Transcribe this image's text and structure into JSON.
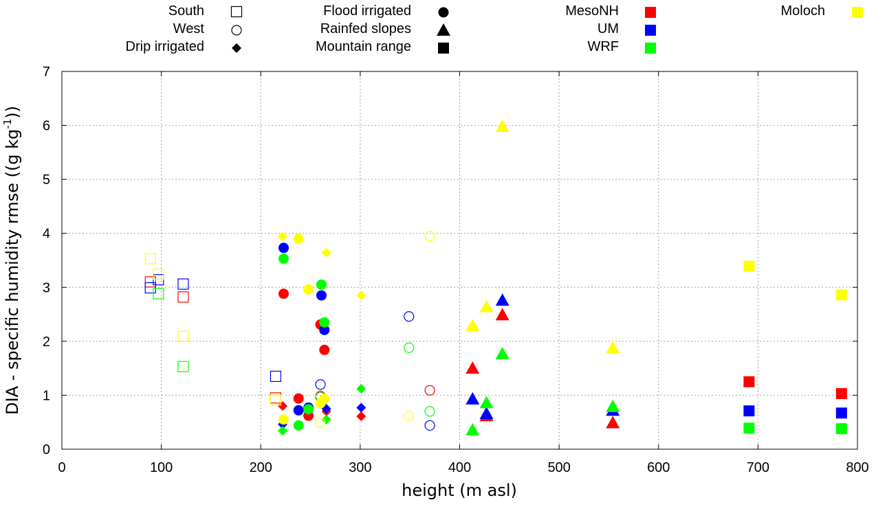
{
  "chart_data": {
    "type": "scatter",
    "title": "",
    "xlabel": "height (m asl)",
    "ylabel_main": "DIA - specific humidity rmse ((g kg",
    "ylabel_sup": "-1",
    "ylabel_tail": "))",
    "xlim": [
      0,
      800
    ],
    "ylim": [
      0,
      7
    ],
    "xticks": [
      0,
      100,
      200,
      300,
      400,
      500,
      600,
      700,
      800
    ],
    "yticks": [
      0,
      1,
      2,
      3,
      4,
      5,
      6,
      7
    ],
    "grid": true,
    "legend": {
      "placement": "top",
      "groups": [
        {
          "label": "South",
          "kind": "shape",
          "marker": "square-open"
        },
        {
          "label": "West",
          "kind": "shape",
          "marker": "circle-open"
        },
        {
          "label": "Drip irrigated",
          "kind": "shape",
          "marker": "diamond"
        },
        {
          "label": "Flood irrigated",
          "kind": "shape",
          "marker": "circle"
        },
        {
          "label": "Rainfed slopes",
          "kind": "shape",
          "marker": "triangle"
        },
        {
          "label": "Mountain range",
          "kind": "shape",
          "marker": "square"
        },
        {
          "label": "MesoNH",
          "kind": "color",
          "color": "#ff0000"
        },
        {
          "label": "UM",
          "kind": "color",
          "color": "#0000ff"
        },
        {
          "label": "WRF",
          "kind": "color",
          "color": "#00ff00"
        },
        {
          "label": "Moloch",
          "kind": "color",
          "color": "#ffff00"
        }
      ]
    },
    "series": [
      {
        "name": "MesoNH",
        "color": "#ff0000",
        "points": [
          {
            "group": "South",
            "x": 89,
            "y": 3.1
          },
          {
            "group": "South",
            "x": 122,
            "y": 2.82
          },
          {
            "group": "South",
            "x": 215,
            "y": 0.95
          },
          {
            "group": "West",
            "x": 260,
            "y": 0.97
          },
          {
            "group": "West",
            "x": 370,
            "y": 1.09
          },
          {
            "group": "Drip irrigated",
            "x": 222,
            "y": 0.8
          },
          {
            "group": "Drip irrigated",
            "x": 266,
            "y": 0.7
          },
          {
            "group": "Drip irrigated",
            "x": 301,
            "y": 0.61
          },
          {
            "group": "Flood irrigated",
            "x": 223,
            "y": 2.88
          },
          {
            "group": "Flood irrigated",
            "x": 238,
            "y": 0.94
          },
          {
            "group": "Flood irrigated",
            "x": 248,
            "y": 0.62
          },
          {
            "group": "Flood irrigated",
            "x": 260,
            "y": 2.31
          },
          {
            "group": "Flood irrigated",
            "x": 264,
            "y": 1.84
          },
          {
            "group": "Rainfed slopes",
            "x": 413,
            "y": 1.5
          },
          {
            "group": "Rainfed slopes",
            "x": 427,
            "y": 0.62
          },
          {
            "group": "Rainfed slopes",
            "x": 443,
            "y": 2.49
          },
          {
            "group": "Rainfed slopes",
            "x": 554,
            "y": 0.49
          },
          {
            "group": "Mountain range",
            "x": 691,
            "y": 1.25
          },
          {
            "group": "Mountain range",
            "x": 784,
            "y": 1.03
          }
        ]
      },
      {
        "name": "UM",
        "color": "#0000ff",
        "points": [
          {
            "group": "South",
            "x": 89,
            "y": 2.99
          },
          {
            "group": "South",
            "x": 97,
            "y": 3.14
          },
          {
            "group": "South",
            "x": 122,
            "y": 3.06
          },
          {
            "group": "South",
            "x": 215,
            "y": 1.35
          },
          {
            "group": "West",
            "x": 260,
            "y": 1.2
          },
          {
            "group": "West",
            "x": 349,
            "y": 2.46
          },
          {
            "group": "West",
            "x": 370,
            "y": 0.44
          },
          {
            "group": "Drip irrigated",
            "x": 222,
            "y": 0.46
          },
          {
            "group": "Drip irrigated",
            "x": 266,
            "y": 0.75
          },
          {
            "group": "Drip irrigated",
            "x": 301,
            "y": 0.77
          },
          {
            "group": "Flood irrigated",
            "x": 223,
            "y": 3.73
          },
          {
            "group": "Flood irrigated",
            "x": 238,
            "y": 0.72
          },
          {
            "group": "Flood irrigated",
            "x": 248,
            "y": 0.77
          },
          {
            "group": "Flood irrigated",
            "x": 261,
            "y": 2.85
          },
          {
            "group": "Flood irrigated",
            "x": 264,
            "y": 2.21
          },
          {
            "group": "Rainfed slopes",
            "x": 413,
            "y": 0.93
          },
          {
            "group": "Rainfed slopes",
            "x": 427,
            "y": 0.66
          },
          {
            "group": "Rainfed slopes",
            "x": 443,
            "y": 2.76
          },
          {
            "group": "Rainfed slopes",
            "x": 554,
            "y": 0.72
          },
          {
            "group": "Mountain range",
            "x": 691,
            "y": 0.71
          },
          {
            "group": "Mountain range",
            "x": 784,
            "y": 0.67
          }
        ]
      },
      {
        "name": "WRF",
        "color": "#00ff00",
        "points": [
          {
            "group": "South",
            "x": 97,
            "y": 2.88
          },
          {
            "group": "South",
            "x": 122,
            "y": 1.53
          },
          {
            "group": "West",
            "x": 260,
            "y": 0.99
          },
          {
            "group": "West",
            "x": 349,
            "y": 1.88
          },
          {
            "group": "West",
            "x": 370,
            "y": 0.7
          },
          {
            "group": "Drip irrigated",
            "x": 222,
            "y": 0.34
          },
          {
            "group": "Drip irrigated",
            "x": 266,
            "y": 0.55
          },
          {
            "group": "Drip irrigated",
            "x": 301,
            "y": 1.12
          },
          {
            "group": "Flood irrigated",
            "x": 223,
            "y": 3.53
          },
          {
            "group": "Flood irrigated",
            "x": 238,
            "y": 0.44
          },
          {
            "group": "Flood irrigated",
            "x": 248,
            "y": 0.74
          },
          {
            "group": "Flood irrigated",
            "x": 261,
            "y": 3.05
          },
          {
            "group": "Flood irrigated",
            "x": 264,
            "y": 2.35
          },
          {
            "group": "Rainfed slopes",
            "x": 413,
            "y": 0.36
          },
          {
            "group": "Rainfed slopes",
            "x": 427,
            "y": 0.86
          },
          {
            "group": "Rainfed slopes",
            "x": 443,
            "y": 1.77
          },
          {
            "group": "Rainfed slopes",
            "x": 554,
            "y": 0.79
          },
          {
            "group": "Mountain range",
            "x": 691,
            "y": 0.39
          },
          {
            "group": "Mountain range",
            "x": 784,
            "y": 0.38
          }
        ]
      },
      {
        "name": "Moloch",
        "color": "#ffff00",
        "points": [
          {
            "group": "South",
            "x": 89,
            "y": 3.53
          },
          {
            "group": "South",
            "x": 97,
            "y": 3.24
          },
          {
            "group": "South",
            "x": 122,
            "y": 2.09
          },
          {
            "group": "South",
            "x": 215,
            "y": 0.91
          },
          {
            "group": "West",
            "x": 260,
            "y": 0.49
          },
          {
            "group": "West",
            "x": 349,
            "y": 0.62
          },
          {
            "group": "West",
            "x": 370,
            "y": 3.95
          },
          {
            "group": "Drip irrigated",
            "x": 222,
            "y": 3.94
          },
          {
            "group": "Drip irrigated",
            "x": 266,
            "y": 3.64
          },
          {
            "group": "Drip irrigated",
            "x": 301,
            "y": 2.85
          },
          {
            "group": "Flood irrigated",
            "x": 223,
            "y": 0.55
          },
          {
            "group": "Flood irrigated",
            "x": 238,
            "y": 3.9
          },
          {
            "group": "Flood irrigated",
            "x": 248,
            "y": 2.96
          },
          {
            "group": "Flood irrigated",
            "x": 260,
            "y": 0.85
          },
          {
            "group": "Flood irrigated",
            "x": 264,
            "y": 0.93
          },
          {
            "group": "Rainfed slopes",
            "x": 413,
            "y": 2.29
          },
          {
            "group": "Rainfed slopes",
            "x": 427,
            "y": 2.64
          },
          {
            "group": "Rainfed slopes",
            "x": 443,
            "y": 5.98
          },
          {
            "group": "Rainfed slopes",
            "x": 554,
            "y": 1.88
          },
          {
            "group": "Mountain range",
            "x": 691,
            "y": 3.39
          },
          {
            "group": "Mountain range",
            "x": 784,
            "y": 2.86
          }
        ]
      }
    ]
  }
}
